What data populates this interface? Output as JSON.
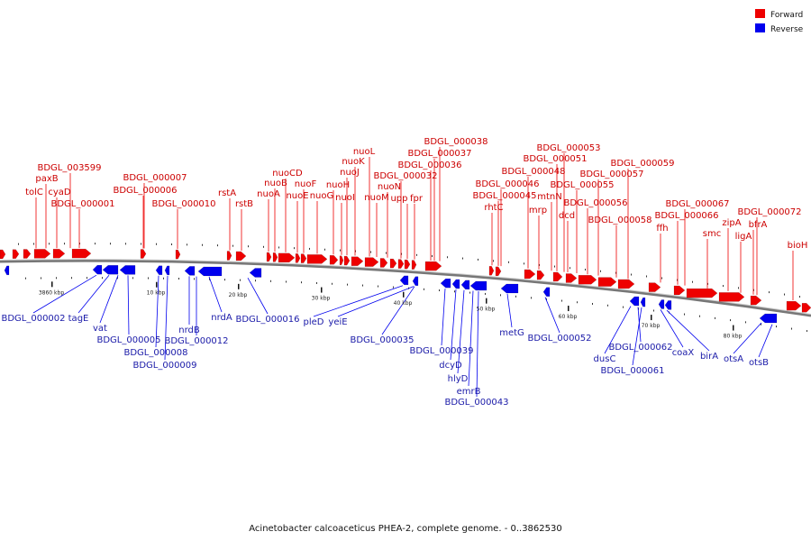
{
  "caption": "Acinetobacter calcoaceticus PHEA-2, complete genome. - 0..3862530",
  "legend": [
    {
      "label": "Forward",
      "color": "#ee0000"
    },
    {
      "label": "Reverse",
      "color": "#0000ee"
    }
  ],
  "colors": {
    "forward": "#ee0000",
    "reverse": "#0000ee",
    "forward_label": "#cc0000",
    "reverse_label": "#1a1aa8",
    "backbone": "#777777"
  },
  "ticks": [
    "3860 kbp",
    "10 kbp",
    "20 kbp",
    "30 kbp",
    "40 kbp",
    "50 kbp",
    "60 kbp",
    "70 kbp",
    "80 kbp"
  ],
  "forward_genes": [
    "tolC",
    "paxB",
    "cyaD",
    "BDGL_003599",
    "BDGL_000001",
    "BDGL_000006",
    "BDGL_000007",
    "BDGL_000010",
    "rstA",
    "rstB",
    "nuoA",
    "nuoB",
    "nuoCD",
    "nuoE",
    "nuoF",
    "nuoG",
    "nuoH",
    "nuoI",
    "nuoJ",
    "nuoK",
    "nuoL",
    "nuoM",
    "nuoN",
    "BDGL_000032",
    "upp",
    "fpr",
    "BDGL_000036",
    "BDGL_000037",
    "BDGL_000038",
    "rhtC",
    "BDGL_000045",
    "BDGL_000046",
    "BDGL_000048",
    "mrp",
    "mtnN",
    "BDGL_000051",
    "BDGL_000053",
    "dcd",
    "BDGL_000055",
    "BDGL_000056",
    "BDGL_000057",
    "BDGL_000058",
    "BDGL_000059",
    "ffh",
    "BDGL_000066",
    "BDGL_000067",
    "smc",
    "zipA",
    "ligA",
    "bfrA",
    "BDGL_000072",
    "bioH"
  ],
  "reverse_genes": [
    "BDGL_000002",
    "tagE",
    "vat",
    "BDGL_000005",
    "BDGL_000008",
    "BDGL_000009",
    "nrdB",
    "BDGL_000012",
    "nrdA",
    "BDGL_000016",
    "pleD",
    "yeiE",
    "BDGL_000035",
    "BDGL_000039",
    "dcyD",
    "hlyD",
    "emrB",
    "BDGL_000043",
    "metG",
    "BDGL_000052",
    "dusC",
    "BDGL_000061",
    "BDGL_000062",
    "coaX",
    "birA",
    "otsA",
    "otsB"
  ]
}
